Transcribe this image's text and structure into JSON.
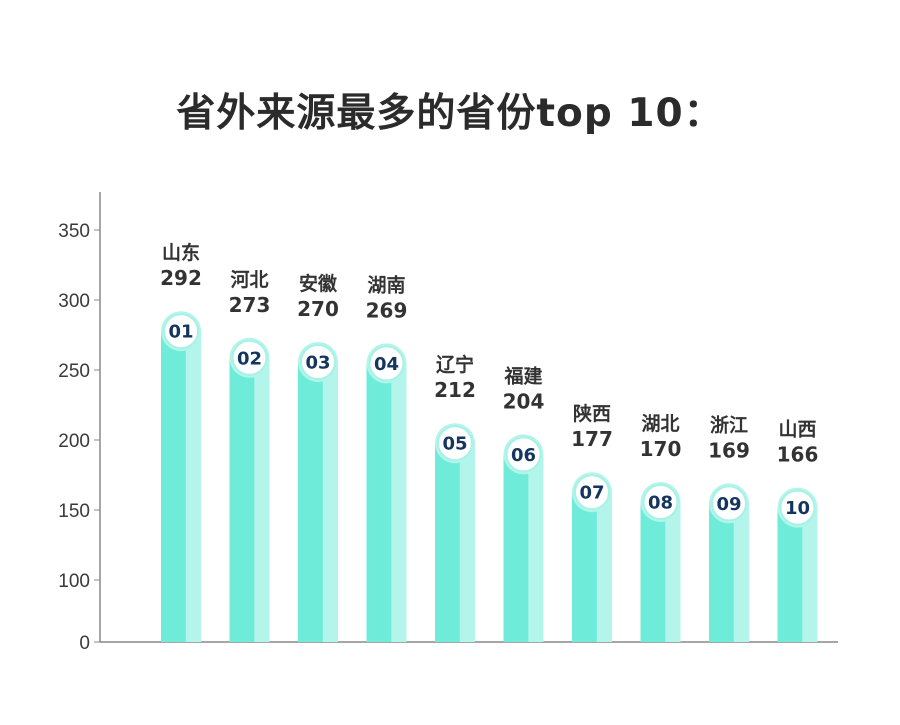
{
  "title": "省外来源最多的省份top 10：",
  "colors": {
    "bar_main": "#6eecd9",
    "bar_light": "#b3f5ea",
    "circle_fill": "#ffffff",
    "circle_stroke": "#a8f1e6",
    "rank_text": "#14355e",
    "axis": "#888888"
  },
  "chart_data": {
    "type": "bar",
    "categories": [
      "山东",
      "河北",
      "安徽",
      "湖南",
      "辽宁",
      "福建",
      "陕西",
      "湖北",
      "浙江",
      "山西"
    ],
    "values": [
      292,
      273,
      270,
      269,
      212,
      204,
      177,
      170,
      169,
      166
    ],
    "ranks": [
      "01",
      "02",
      "03",
      "04",
      "05",
      "06",
      "07",
      "08",
      "09",
      "10"
    ],
    "yticks": [
      0,
      100,
      150,
      200,
      250,
      300,
      350
    ],
    "ylim": [
      0,
      350
    ],
    "grid": false,
    "xlabel": "",
    "ylabel": ""
  }
}
